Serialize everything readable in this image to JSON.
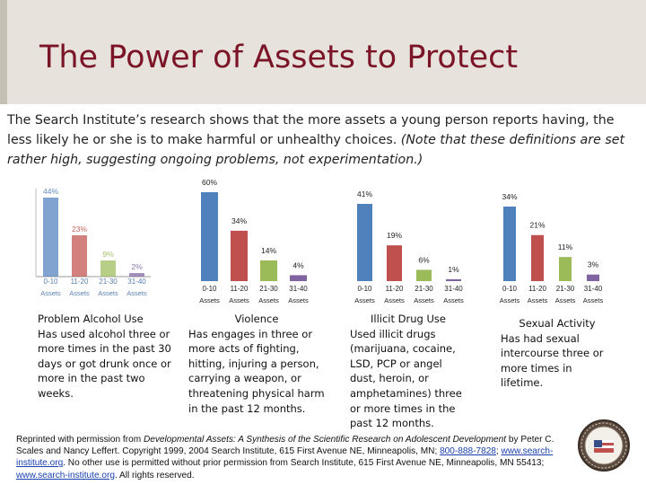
{
  "title": "The Power of Assets to Protect",
  "intro": {
    "main": "The Search Institute’s research shows that the more assets a young person reports having, the less likely he or she is to make harmful or unhealthy choices. ",
    "note": "(Note that these definitions are set rather high, suggesting ongoing problems, not experimentation.)"
  },
  "colors": {
    "blue": "#4f81bd",
    "red": "#c0504d",
    "green": "#9bbb59",
    "purple": "#8064a2",
    "title": "#7a1426"
  },
  "chart_data": [
    {
      "type": "bar",
      "categories": [
        "0-10 Assets",
        "11-20 Assets",
        "21-30 Assets",
        "31-40 Assets"
      ],
      "values": [
        44,
        23,
        9,
        2
      ],
      "data_labels": [
        "44%",
        "23%",
        "9%",
        "2%"
      ],
      "ylim": [
        0,
        44
      ]
    },
    {
      "type": "bar",
      "categories": [
        "0-10 Assets",
        "11-20 Assets",
        "21-30 Assets",
        "31-40 Assets"
      ],
      "values": [
        60,
        34,
        14,
        4
      ],
      "data_labels": [
        "60%",
        "34%",
        "14%",
        "4%"
      ],
      "ylim": [
        0,
        60
      ]
    },
    {
      "type": "bar",
      "categories": [
        "0-10 Assets",
        "11-20 Assets",
        "21-30 Assets",
        "31-40 Assets"
      ],
      "values": [
        41,
        19,
        6,
        1
      ],
      "data_labels": [
        "41%",
        "19%",
        "6%",
        "1%"
      ],
      "ylim": [
        0,
        41
      ]
    },
    {
      "type": "bar",
      "categories": [
        "0-10 Assets",
        "11-20 Assets",
        "21-30 Assets",
        "31-40 Assets"
      ],
      "values": [
        34,
        21,
        11,
        3
      ],
      "data_labels": [
        "34%",
        "21%",
        "11%",
        "3%"
      ],
      "ylim": [
        0,
        34
      ]
    }
  ],
  "descriptions": [
    {
      "title": "Problem Alcohol Use",
      "body": "Has used alcohol three or more times in the past 30 days or got drunk once or more in the past two weeks."
    },
    {
      "title": "Violence",
      "body": "Has engages in three or more acts of fighting, hitting, injuring a person, carrying a weapon, or threatening physical harm in the past 12 months."
    },
    {
      "title": "Illicit Drug Use",
      "body": "Used illicit drugs (marijuana, cocaine, LSD, PCP or angel dust, heroin, or amphetamines) three or more times in the past 12 months."
    },
    {
      "title": "Sexual Activity",
      "body": "Has had sexual intercourse three or more times in lifetime."
    }
  ],
  "credit": {
    "p1": "Reprinted with permission from ",
    "book": "Developmental Assets: A Synthesis of the Scientific Research on Adolescent Development",
    "p2": " by Peter C. Scales and Nancy Leffert. Copyright 1999, 2004 Search Institute, 615 First Avenue NE, Minneapolis, MN; ",
    "phone": "800-888-7828",
    "p3": "; ",
    "url1": "www.search-institute.org",
    "p4": ". No other use is permitted without prior permission from Search Institute, 615 First Avenue NE, Minneapolis, MN 55413; ",
    "url2": "www.search-institute.org",
    "p5": ". All rights reserved."
  }
}
